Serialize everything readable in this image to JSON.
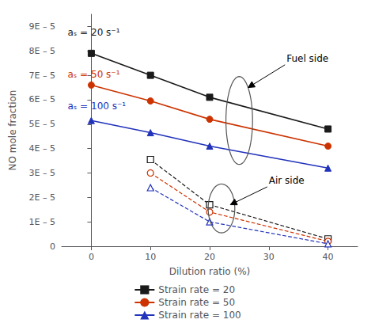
{
  "chart_data": {
    "type": "line",
    "xlabel": "Dilution ratio (%)",
    "ylabel": "NO mole fraction",
    "xlim": [
      -5,
      45
    ],
    "ylim": [
      0,
      9.5e-05
    ],
    "xticks": [
      0,
      10,
      20,
      30,
      40
    ],
    "yticks": [
      0,
      {
        "value": 1e-05,
        "label": "1E – 5"
      },
      {
        "value": 2e-05,
        "label": "2E – 5"
      },
      {
        "value": 3e-05,
        "label": "3E – 5"
      },
      {
        "value": 4e-05,
        "label": "4E – 5"
      },
      {
        "value": 5e-05,
        "label": "5E – 5"
      },
      {
        "value": 6e-05,
        "label": "6E – 5"
      },
      {
        "value": 7e-05,
        "label": "7E – 5"
      },
      {
        "value": 8e-05,
        "label": "8E – 5"
      },
      {
        "value": 9e-05,
        "label": "9E – 5"
      }
    ],
    "grid": false,
    "legend": "bottom",
    "series": [
      {
        "name": "Strain rate = 20",
        "color": "#1a1a1a",
        "marker": "square",
        "line_style": "solid",
        "x": [
          0,
          10,
          20,
          40
        ],
        "values": [
          7.9e-05,
          7e-05,
          6.1e-05,
          4.8e-05
        ]
      },
      {
        "name": "Strain rate = 50",
        "color": "#cc3300",
        "marker": "circle",
        "line_style": "solid",
        "x": [
          0,
          10,
          20,
          40
        ],
        "values": [
          6.6e-05,
          5.95e-05,
          5.2e-05,
          4.1e-05
        ]
      },
      {
        "name": "Strain rate = 100",
        "color": "#2233bb",
        "marker": "triangle",
        "line_style": "solid",
        "x": [
          0,
          10,
          20,
          40
        ],
        "values": [
          5.15e-05,
          4.65e-05,
          4.1e-05,
          3.2e-05
        ]
      },
      {
        "color": "#1a1a1a",
        "marker": "square_open",
        "line_style": "dashed",
        "x": [
          10,
          20,
          40
        ],
        "values": [
          3.55e-05,
          1.7e-05,
          3e-06
        ]
      },
      {
        "color": "#cc3300",
        "marker": "circle_open",
        "line_style": "dashed",
        "x": [
          10,
          20,
          40
        ],
        "values": [
          3e-05,
          1.4e-05,
          2e-06
        ]
      },
      {
        "color": "#2233bb",
        "marker": "triangle_open",
        "line_style": "dashed",
        "x": [
          10,
          20,
          40
        ],
        "values": [
          2.4e-05,
          1e-05,
          1e-06
        ]
      }
    ],
    "annotations": [
      {
        "text": "aₛ = 20 s⁻¹",
        "color": "#1a1a1a"
      },
      {
        "text": "aₛ = 50 s⁻¹",
        "color": "#cc3300"
      },
      {
        "text": "aₛ = 100 s⁻¹",
        "color": "#2233bb"
      },
      {
        "text": "Fuel side"
      },
      {
        "text": "Air side"
      }
    ]
  }
}
